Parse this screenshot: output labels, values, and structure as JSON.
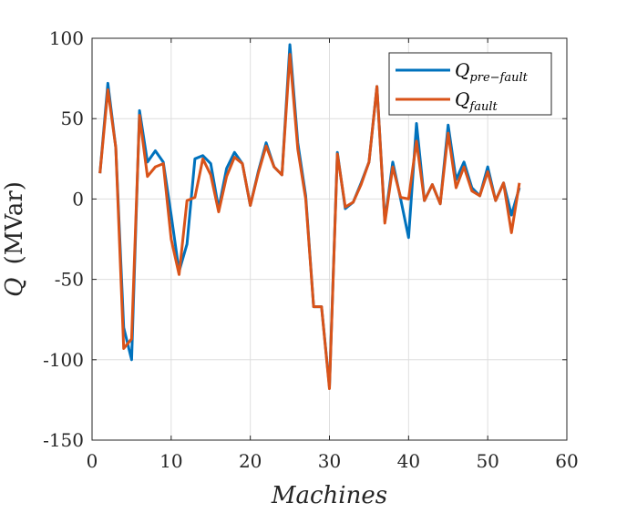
{
  "chart_data": {
    "type": "line",
    "title": "",
    "xlabel": "Machines",
    "ylabel_symbol": "Q",
    "ylabel_unit": "(MVar)",
    "xlim": [
      0,
      60
    ],
    "ylim": [
      -150,
      100
    ],
    "xticks": [
      0,
      10,
      20,
      30,
      40,
      50,
      60
    ],
    "yticks": [
      100,
      50,
      0,
      -50,
      -100,
      -150
    ],
    "xtick_labels": [
      "0",
      "10",
      "20",
      "30",
      "40",
      "50",
      "60"
    ],
    "ytick_labels": [
      "100",
      "50",
      "0",
      "-50",
      "-100",
      "-150"
    ],
    "grid": true,
    "legend": "top-right",
    "x": [
      1,
      2,
      3,
      4,
      5,
      6,
      7,
      8,
      9,
      10,
      11,
      12,
      13,
      14,
      15,
      16,
      17,
      18,
      19,
      20,
      21,
      22,
      23,
      24,
      25,
      26,
      27,
      28,
      29,
      30,
      31,
      32,
      33,
      34,
      35,
      36,
      37,
      38,
      39,
      40,
      41,
      42,
      43,
      44,
      45,
      46,
      47,
      48,
      49,
      50,
      51,
      52,
      53,
      54
    ],
    "series": [
      {
        "name": "Q",
        "name_sub": "pre−fault",
        "color": "#0072BD",
        "values": [
          16,
          72,
          32,
          -80,
          -100,
          55,
          23,
          30,
          23,
          -10,
          -45,
          -28,
          25,
          27,
          22,
          -6,
          19,
          29,
          22,
          -4,
          17,
          35,
          20,
          15,
          96,
          35,
          2,
          -67,
          -67,
          -117,
          29,
          -6,
          -2,
          10,
          23,
          70,
          -14,
          23,
          0,
          -24,
          47,
          -1,
          9,
          -3,
          46,
          12,
          23,
          7,
          2,
          20,
          -1,
          10,
          -10,
          7
        ]
      },
      {
        "name": "Q",
        "name_sub": "fault",
        "color": "#D95319",
        "values": [
          16,
          68,
          32,
          -93,
          -87,
          52,
          14,
          20,
          22,
          -25,
          -47,
          -1,
          1,
          25,
          15,
          -8,
          14,
          26,
          22,
          -4,
          16,
          33,
          20,
          15,
          90,
          31,
          0,
          -67,
          -67,
          -118,
          28,
          -5,
          -2,
          9,
          23,
          70,
          -15,
          20,
          1,
          0,
          36,
          -1,
          9,
          -3,
          41,
          7,
          20,
          5,
          2,
          17,
          -1,
          10,
          -21,
          10
        ]
      }
    ]
  }
}
